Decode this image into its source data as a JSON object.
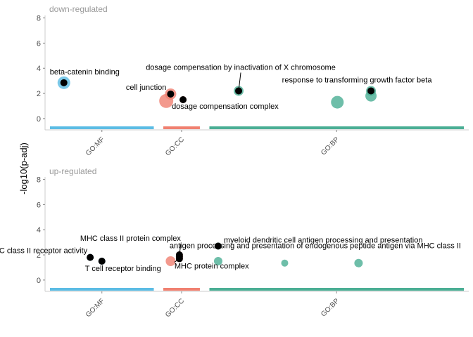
{
  "chart_data": {
    "type": "scatter",
    "ylabel": "-log10(p-adj)",
    "ylim": [
      -0.9,
      8.2
    ],
    "y_ticks": [
      0,
      2,
      4,
      6,
      8
    ],
    "categories": [
      {
        "name": "GO:MF",
        "color": "#5BBCE4",
        "start": 0,
        "end": 142
      },
      {
        "name": "GO:CC",
        "color": "#F08070",
        "start": 155,
        "end": 205
      },
      {
        "name": "GO:BP",
        "color": "#4AAE94",
        "start": 218,
        "end": 566
      }
    ],
    "panels": [
      {
        "title": "down-regulated",
        "points": [
          {
            "x": 19,
            "y": 2.85,
            "category": "GO:MF",
            "size": 9,
            "color": "#5BBCE4",
            "label": "beta-catenin binding",
            "highlight": true
          },
          {
            "x": 159,
            "y": 1.4,
            "category": "GO:CC",
            "size": 10,
            "color": "#F08070",
            "label": "",
            "highlight": false
          },
          {
            "x": 165,
            "y": 1.95,
            "category": "GO:CC",
            "size": 8,
            "color": "#F08070",
            "label": "cell junction",
            "highlight": true
          },
          {
            "x": 182,
            "y": 1.5,
            "category": "GO:CC",
            "size": 5,
            "color": "#F08070",
            "label": "dosage compensation complex",
            "highlight": true
          },
          {
            "x": 258,
            "y": 2.2,
            "category": "GO:BP",
            "size": 7,
            "color": "#4AAE94",
            "label": "dosage compensation by inactivation of X chromosome",
            "highlight": true
          },
          {
            "x": 393,
            "y": 1.3,
            "category": "GO:BP",
            "size": 9,
            "color": "#4AAE94",
            "label": "",
            "highlight": false
          },
          {
            "x": 439,
            "y": 1.8,
            "category": "GO:BP",
            "size": 8,
            "color": "#4AAE94",
            "label": "",
            "highlight": false
          },
          {
            "x": 439,
            "y": 2.2,
            "category": "GO:BP",
            "size": 7,
            "color": "#4AAE94",
            "label": "response to transforming growth factor beta",
            "highlight": true
          }
        ]
      },
      {
        "title": "up-regulated",
        "points": [
          {
            "x": 55,
            "y": 1.8,
            "category": "GO:MF",
            "size": 5,
            "color": "#5BBCE4",
            "label": "MHC class II receptor activity",
            "highlight": true
          },
          {
            "x": 71,
            "y": 1.5,
            "category": "GO:MF",
            "size": 5,
            "color": "#5BBCE4",
            "label": "T cell receptor binding",
            "highlight": true
          },
          {
            "x": 165,
            "y": 1.5,
            "category": "GO:CC",
            "size": 7,
            "color": "#F08070",
            "label": "",
            "highlight": false
          },
          {
            "x": 177,
            "y": 2.0,
            "category": "GO:CC",
            "size": 5,
            "color": "#F08070",
            "label": "MHC class II protein complex",
            "highlight": true
          },
          {
            "x": 177,
            "y": 1.7,
            "category": "GO:CC",
            "size": 5,
            "color": "#F08070",
            "label": "MHC protein complex",
            "highlight": true
          },
          {
            "x": 230,
            "y": 1.5,
            "category": "GO:BP",
            "size": 6,
            "color": "#4AAE94",
            "label": "",
            "highlight": false
          },
          {
            "x": 230,
            "y": 2.7,
            "category": "GO:BP",
            "size": 5,
            "color": "#4AAE94",
            "label": "myeloid dendritic cell antigen processing and presentation",
            "highlight": true
          },
          {
            "x": 321,
            "y": 1.35,
            "category": "GO:BP",
            "size": 5,
            "color": "#4AAE94",
            "label": "",
            "highlight": false
          },
          {
            "x": 422,
            "y": 1.35,
            "category": "GO:BP",
            "size": 6,
            "color": "#4AAE94",
            "label": "",
            "highlight": false
          },
          {
            "x": 177,
            "y": 1.85,
            "category": "GO:CC",
            "size": 5,
            "color": "#F08070",
            "label": "antigen processing and presentation of endogenous peptide antigen via MHC class II",
            "highlight": true
          }
        ]
      }
    ]
  }
}
